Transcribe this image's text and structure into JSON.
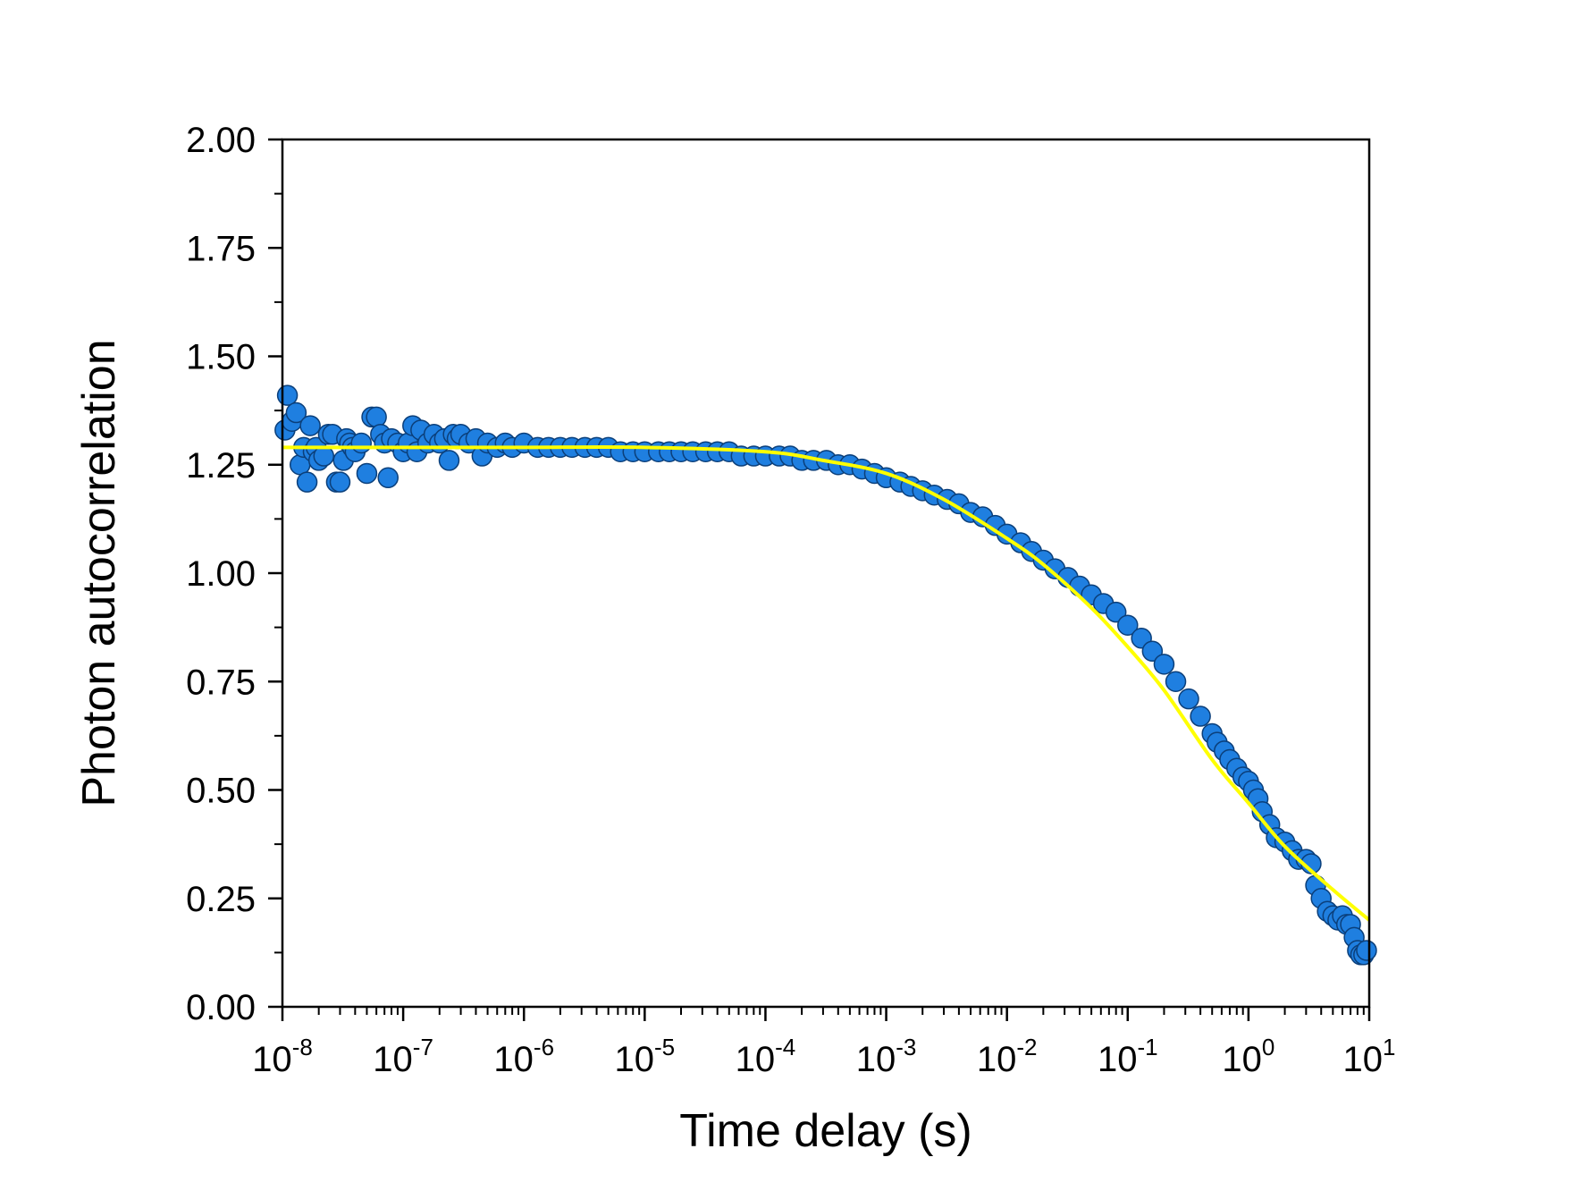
{
  "chart_data": {
    "type": "scatter",
    "title": "",
    "xlabel": "Time delay (s)",
    "ylabel": "Photon autocorrelation",
    "xscale": "log",
    "xlim": [
      1e-08,
      10
    ],
    "ylim": [
      0,
      2
    ],
    "x_ticks": [
      {
        "base": "10",
        "exp": "-8",
        "value": 1e-08
      },
      {
        "base": "10",
        "exp": "-7",
        "value": 1e-07
      },
      {
        "base": "10",
        "exp": "-6",
        "value": 1e-06
      },
      {
        "base": "10",
        "exp": "-5",
        "value": 1e-05
      },
      {
        "base": "10",
        "exp": "-4",
        "value": 0.0001
      },
      {
        "base": "10",
        "exp": "-3",
        "value": 0.001
      },
      {
        "base": "10",
        "exp": "-2",
        "value": 0.01
      },
      {
        "base": "10",
        "exp": "-1",
        "value": 0.1
      },
      {
        "base": "10",
        "exp": "0",
        "value": 1
      },
      {
        "base": "10",
        "exp": "1",
        "value": 10
      }
    ],
    "y_ticks": [
      {
        "label": "0.00",
        "value": 0
      },
      {
        "label": "0.25",
        "value": 0.25
      },
      {
        "label": "0.50",
        "value": 0.5
      },
      {
        "label": "0.75",
        "value": 0.75
      },
      {
        "label": "1.00",
        "value": 1.0
      },
      {
        "label": "1.25",
        "value": 1.25
      },
      {
        "label": "1.50",
        "value": 1.5
      },
      {
        "label": "1.75",
        "value": 1.75
      },
      {
        "label": "2.00",
        "value": 2.0
      }
    ],
    "grid": false,
    "legend": "none",
    "marker_color": "#1f7fe0",
    "marker_edge_color": "#0b3f7a",
    "fit_color": "#ffff00",
    "series": [
      {
        "kind": "points",
        "x": [
          1.05e-08,
          1.1e-08,
          1.2e-08,
          1.3e-08,
          1.4e-08,
          1.5e-08,
          1.6e-08,
          1.7e-08,
          1.8e-08,
          1.9e-08,
          2e-08,
          2.2e-08,
          2.4e-08,
          2.6e-08,
          2.8e-08,
          3e-08,
          3.2e-08,
          3.4e-08,
          3.6e-08,
          3.8e-08,
          4e-08,
          4.5e-08,
          5e-08,
          5.5e-08,
          6e-08,
          6.5e-08,
          7e-08,
          7.5e-08,
          8e-08,
          9e-08,
          1e-07,
          1.1e-07,
          1.2e-07,
          1.3e-07,
          1.4e-07,
          1.6e-07,
          1.8e-07,
          2e-07,
          2.2e-07,
          2.4e-07,
          2.6e-07,
          2.8e-07,
          3e-07,
          3.5e-07,
          4e-07,
          4.5e-07,
          5e-07,
          6e-07,
          7e-07,
          8e-07,
          1e-06,
          1.3e-06,
          1.6e-06,
          2e-06,
          2.5e-06,
          3.2e-06,
          4e-06,
          5e-06,
          6.3e-06,
          8e-06,
          1e-05,
          1.3e-05,
          1.6e-05,
          2e-05,
          2.5e-05,
          3.2e-05,
          4e-05,
          5e-05,
          6.3e-05,
          8e-05,
          0.0001,
          0.00013,
          0.00016,
          0.0002,
          0.00025,
          0.00032,
          0.0004,
          0.0005,
          0.00063,
          0.0008,
          0.001,
          0.0013,
          0.0016,
          0.002,
          0.0025,
          0.0032,
          0.004,
          0.005,
          0.0063,
          0.008,
          0.01,
          0.013,
          0.016,
          0.02,
          0.025,
          0.032,
          0.04,
          0.05,
          0.063,
          0.08,
          0.1,
          0.13,
          0.16,
          0.2,
          0.25,
          0.32,
          0.4,
          0.5,
          0.55,
          0.63,
          0.7,
          0.8,
          0.9,
          1.0,
          1.1,
          1.2,
          1.3,
          1.5,
          1.7,
          2.0,
          2.3,
          2.6,
          3.0,
          3.3,
          3.6,
          4.0,
          4.5,
          5.0,
          5.5,
          6.0,
          6.5,
          7.0,
          7.5,
          8.0,
          8.5,
          9.0,
          9.5
        ],
        "y": [
          1.33,
          1.41,
          1.35,
          1.37,
          1.25,
          1.29,
          1.21,
          1.34,
          1.28,
          1.29,
          1.26,
          1.27,
          1.32,
          1.32,
          1.21,
          1.21,
          1.26,
          1.31,
          1.3,
          1.29,
          1.28,
          1.3,
          1.23,
          1.36,
          1.36,
          1.32,
          1.3,
          1.22,
          1.31,
          1.3,
          1.28,
          1.3,
          1.34,
          1.28,
          1.33,
          1.3,
          1.32,
          1.3,
          1.31,
          1.26,
          1.32,
          1.31,
          1.32,
          1.3,
          1.31,
          1.27,
          1.3,
          1.29,
          1.3,
          1.29,
          1.3,
          1.29,
          1.29,
          1.29,
          1.29,
          1.29,
          1.29,
          1.29,
          1.28,
          1.28,
          1.28,
          1.28,
          1.28,
          1.28,
          1.28,
          1.28,
          1.28,
          1.28,
          1.27,
          1.27,
          1.27,
          1.27,
          1.27,
          1.26,
          1.26,
          1.26,
          1.25,
          1.25,
          1.24,
          1.23,
          1.22,
          1.21,
          1.2,
          1.19,
          1.18,
          1.17,
          1.16,
          1.14,
          1.13,
          1.11,
          1.09,
          1.07,
          1.05,
          1.03,
          1.01,
          0.99,
          0.97,
          0.95,
          0.93,
          0.91,
          0.88,
          0.85,
          0.82,
          0.79,
          0.75,
          0.71,
          0.67,
          0.63,
          0.61,
          0.59,
          0.57,
          0.55,
          0.53,
          0.52,
          0.5,
          0.48,
          0.45,
          0.42,
          0.39,
          0.38,
          0.36,
          0.34,
          0.34,
          0.33,
          0.28,
          0.25,
          0.22,
          0.21,
          0.2,
          0.21,
          0.19,
          0.19,
          0.16,
          0.13,
          0.12,
          0.12,
          0.13
        ]
      },
      {
        "kind": "fit_line",
        "x": [
          1e-08,
          1e-07,
          1e-06,
          1e-05,
          0.0001,
          0.0003,
          0.001,
          0.003,
          0.01,
          0.02,
          0.05,
          0.1,
          0.2,
          0.5,
          1.0,
          2.0,
          5.0,
          10.0
        ],
        "y": [
          1.29,
          1.29,
          1.29,
          1.29,
          1.28,
          1.26,
          1.23,
          1.17,
          1.08,
          1.02,
          0.92,
          0.83,
          0.73,
          0.57,
          0.47,
          0.37,
          0.27,
          0.2
        ]
      }
    ]
  }
}
